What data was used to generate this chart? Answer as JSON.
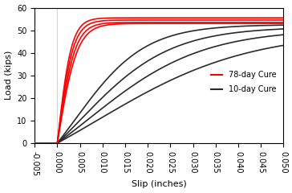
{
  "title": "",
  "xlabel": "Slip (inches)",
  "ylabel": "Load (kips)",
  "xlim": [
    -0.005,
    0.05
  ],
  "ylim": [
    0,
    60
  ],
  "xticks": [
    -0.005,
    0.0,
    0.005,
    0.01,
    0.015,
    0.02,
    0.025,
    0.03,
    0.035,
    0.04,
    0.045,
    0.05
  ],
  "yticks": [
    0,
    10,
    20,
    30,
    40,
    50,
    60
  ],
  "vline_x": 0.0,
  "legend_entries": [
    {
      "label": "78-day Cure",
      "color": "red"
    },
    {
      "label": "10-day Cure",
      "color": "#2a2a2a"
    }
  ],
  "red_curves": [
    {
      "plateau": 55.5,
      "k": 320
    },
    {
      "plateau": 54.5,
      "k": 290
    },
    {
      "plateau": 53.5,
      "k": 260
    },
    {
      "plateau": 53.0,
      "k": 230
    }
  ],
  "black_curves": [
    {
      "plateau": 52.5,
      "k": 130,
      "inflect": 0.004
    },
    {
      "plateau": 51.5,
      "k": 100,
      "inflect": 0.005
    },
    {
      "plateau": 50.5,
      "k": 80,
      "inflect": 0.007
    },
    {
      "plateau": 49.5,
      "k": 60,
      "inflect": 0.009
    }
  ],
  "red_color": "#ff0000",
  "black_color": "#2a2a2a",
  "background_color": "#ffffff",
  "linewidth": 1.2,
  "font_size": 7,
  "legend_font_size": 7
}
